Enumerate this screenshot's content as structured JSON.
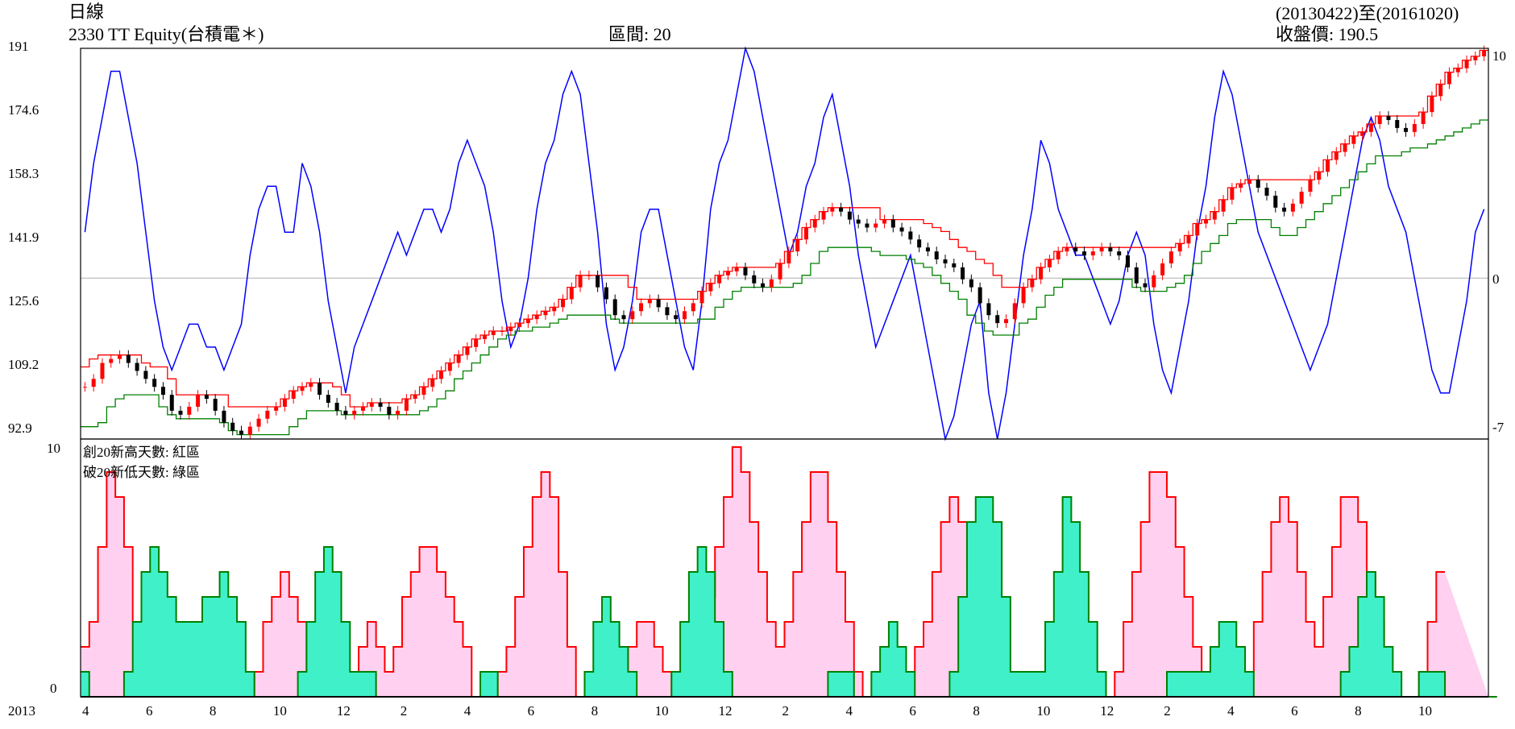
{
  "header": {
    "freq": "日線",
    "security": "2330 TT Equity(台積電＊)",
    "period": "區間:  20",
    "date_range": "(20130422)至(20161020)",
    "close": "收盤價:  190.5"
  },
  "colors": {
    "price_up": "#ff0000",
    "price_down": "#000000",
    "high_band": "#ff0000",
    "low_band": "#008000",
    "oscillator": "#0000ff",
    "high_area_fill": "#ffd0f0",
    "low_area_fill": "#40f0c8",
    "zero_line": "#b0b0b0"
  },
  "chart_data": [
    {
      "type": "line",
      "panel": "upper",
      "title": "2330 TT Equity(台積電＊)",
      "y_ticks_left": [
        "191",
        "174.6",
        "158.3",
        "141.9",
        "125.6",
        "109.2",
        "92.9"
      ],
      "y_ticks_right": [
        "10",
        "0",
        "-7"
      ],
      "ylim_price": [
        92.9,
        191
      ],
      "ylim_oscillator": [
        -7,
        10
      ],
      "grid": false,
      "series": [
        {
          "name": "close",
          "style": "candlestick",
          "values": [
            106,
            108,
            112,
            113,
            114,
            112,
            110,
            108,
            106,
            104,
            100,
            99,
            101,
            104,
            103,
            100,
            97,
            95,
            94,
            96,
            98,
            100,
            101,
            103,
            105,
            106,
            107,
            104,
            102,
            100,
            99,
            100,
            101,
            102,
            101,
            99,
            100,
            103,
            104,
            106,
            108,
            110,
            112,
            114,
            116,
            118,
            119,
            120,
            120,
            121,
            122,
            123,
            124,
            125,
            126,
            128,
            131,
            134,
            134,
            131,
            128,
            124,
            123,
            125,
            127,
            128,
            126,
            124,
            123,
            125,
            127,
            130,
            132,
            134,
            135,
            136,
            134,
            132,
            131,
            133,
            137,
            140,
            143,
            146,
            148,
            150,
            151,
            150,
            148,
            147,
            146,
            147,
            148,
            146,
            145,
            143,
            141,
            140,
            138,
            137,
            136,
            133,
            131,
            127,
            124,
            122,
            123,
            127,
            131,
            133,
            136,
            138,
            140,
            141,
            140,
            139,
            140,
            141,
            140,
            139,
            136,
            132,
            131,
            134,
            137,
            140,
            142,
            144,
            147,
            148,
            150,
            153,
            156,
            157,
            158,
            156,
            154,
            151,
            150,
            152,
            155,
            158,
            160,
            163,
            165,
            167,
            169,
            170,
            172,
            174,
            173,
            171,
            170,
            172,
            175,
            179,
            182,
            185,
            186,
            188,
            189,
            190.5
          ]
        },
        {
          "name": "20-day high",
          "values": [
            111,
            113,
            114,
            114,
            114,
            114,
            114,
            112,
            111,
            111,
            108,
            104,
            104,
            104,
            104,
            104,
            104,
            101,
            101,
            101,
            101,
            101,
            101,
            103,
            105,
            106,
            107,
            107,
            107,
            106,
            104,
            101,
            101,
            102,
            102,
            102,
            102,
            103,
            104,
            106,
            108,
            110,
            112,
            114,
            116,
            118,
            119,
            120,
            120,
            121,
            122,
            123,
            124,
            125,
            126,
            128,
            131,
            134,
            134,
            134,
            134,
            134,
            134,
            131,
            128,
            128,
            128,
            128,
            128,
            128,
            128,
            130,
            132,
            134,
            135,
            136,
            136,
            136,
            136,
            136,
            137,
            140,
            143,
            146,
            148,
            150,
            151,
            151,
            151,
            151,
            151,
            151,
            148,
            148,
            148,
            148,
            148,
            147,
            146,
            145,
            143,
            141,
            140,
            138,
            137,
            134,
            131,
            131,
            131,
            133,
            136,
            138,
            140,
            141,
            141,
            141,
            141,
            141,
            141,
            141,
            141,
            141,
            141,
            141,
            141,
            141,
            142,
            144,
            147,
            148,
            150,
            153,
            156,
            157,
            158,
            158,
            158,
            158,
            158,
            158,
            158,
            158,
            160,
            163,
            165,
            167,
            169,
            170,
            172,
            174,
            174,
            174,
            174,
            174,
            175,
            179,
            182,
            185,
            186,
            188,
            189,
            190.5
          ]
        },
        {
          "name": "20-day low",
          "values": [
            96,
            96,
            97,
            101,
            103,
            104,
            104,
            104,
            104,
            101,
            99,
            98,
            98,
            98,
            98,
            98,
            97,
            95,
            94,
            94,
            94,
            94,
            94,
            94,
            96,
            98,
            100,
            100,
            100,
            100,
            99,
            99,
            99,
            99,
            99,
            99,
            99,
            99,
            99,
            100,
            101,
            103,
            105,
            108,
            110,
            112,
            114,
            116,
            118,
            119,
            120,
            120,
            121,
            121,
            122,
            123,
            124,
            124,
            124,
            124,
            124,
            123,
            122,
            122,
            122,
            122,
            122,
            122,
            122,
            122,
            122,
            123,
            123,
            126,
            128,
            130,
            131,
            131,
            131,
            131,
            131,
            131,
            132,
            134,
            137,
            140,
            141,
            141,
            141,
            141,
            141,
            140,
            139,
            139,
            139,
            138,
            137,
            136,
            134,
            132,
            130,
            128,
            124,
            122,
            120,
            119,
            119,
            119,
            122,
            123,
            126,
            129,
            131,
            133,
            133,
            133,
            133,
            133,
            133,
            133,
            133,
            131,
            130,
            130,
            130,
            131,
            132,
            134,
            137,
            140,
            142,
            144,
            147,
            148,
            148,
            148,
            148,
            146,
            144,
            144,
            146,
            148,
            150,
            152,
            154,
            156,
            158,
            160,
            162,
            164,
            164,
            164,
            165,
            166,
            166,
            167,
            168,
            169,
            170,
            171,
            172,
            173
          ]
        },
        {
          "name": "oscillator",
          "values": [
            2,
            5,
            7,
            9,
            9,
            7,
            5,
            2,
            -1,
            -3,
            -4,
            -3,
            -2,
            -2,
            -3,
            -3,
            -4,
            -3,
            -2,
            1,
            3,
            4,
            4,
            2,
            2,
            5,
            4,
            2,
            -1,
            -3,
            -5,
            -3,
            -2,
            -1,
            0,
            1,
            2,
            1,
            2,
            3,
            3,
            2,
            3,
            5,
            6,
            5,
            4,
            2,
            -1,
            -3,
            -2,
            0,
            3,
            5,
            6,
            8,
            9,
            8,
            5,
            2,
            -2,
            -4,
            -3,
            -1,
            2,
            3,
            3,
            1,
            -1,
            -3,
            -4,
            -1,
            3,
            5,
            6,
            8,
            10,
            9,
            7,
            5,
            3,
            1,
            2,
            4,
            5,
            7,
            8,
            6,
            4,
            1,
            -1,
            -3,
            -2,
            -1,
            0,
            1,
            -1,
            -3,
            -5,
            -7,
            -6,
            -4,
            -2,
            -1,
            -5,
            -7,
            -5,
            -2,
            1,
            3,
            6,
            5,
            3,
            2,
            1,
            1,
            0,
            -1,
            -2,
            -1,
            1,
            2,
            1,
            -2,
            -4,
            -5,
            -3,
            -1,
            2,
            4,
            7,
            9,
            8,
            6,
            4,
            2,
            1,
            0,
            -1,
            -2,
            -3,
            -4,
            -3,
            -2,
            0,
            2,
            4,
            6,
            7,
            6,
            4,
            3,
            2,
            0,
            -2,
            -4,
            -5,
            -5,
            -3,
            -1,
            2,
            3
          ]
        }
      ]
    },
    {
      "type": "area",
      "panel": "lower",
      "x_axis_year": "2013",
      "x_tick_labels": [
        "4",
        "6",
        "8",
        "10",
        "12",
        "2",
        "4",
        "6",
        "8",
        "10",
        "12",
        "2",
        "4",
        "6",
        "8",
        "10",
        "12",
        "2",
        "4",
        "6",
        "8",
        "10"
      ],
      "y_ticks_left": [
        "10",
        "0"
      ],
      "ylim": [
        0,
        10
      ],
      "legend_texts": [
        "創20新高天數: 紅區",
        "破20新低天數: 綠區"
      ],
      "series": [
        {
          "name": "創20新高天數",
          "values": [
            2,
            3,
            6,
            9,
            8,
            6,
            3,
            1,
            0,
            0,
            0,
            0,
            0,
            1,
            3,
            3,
            2,
            1,
            0,
            0,
            1,
            3,
            4,
            5,
            4,
            3,
            1,
            0,
            0,
            0,
            0,
            1,
            2,
            3,
            2,
            1,
            2,
            4,
            5,
            6,
            6,
            5,
            4,
            3,
            2,
            0,
            0,
            0,
            1,
            2,
            4,
            6,
            8,
            9,
            8,
            5,
            2,
            0,
            0,
            0,
            0,
            0,
            1,
            2,
            3,
            3,
            2,
            1,
            0,
            0,
            0,
            1,
            4,
            6,
            8,
            10,
            9,
            7,
            5,
            3,
            2,
            3,
            5,
            7,
            9,
            9,
            7,
            5,
            3,
            1,
            0,
            0,
            0,
            0,
            0,
            1,
            2,
            3,
            5,
            7,
            8,
            7,
            5,
            3,
            2,
            1,
            0,
            0,
            0,
            0,
            1,
            2,
            3,
            2,
            1,
            0,
            0,
            0,
            0,
            1,
            3,
            5,
            7,
            9,
            9,
            8,
            6,
            4,
            2,
            1,
            0,
            0,
            0,
            0,
            1,
            3,
            5,
            7,
            8,
            7,
            5,
            3,
            2,
            4,
            6,
            8,
            8,
            7,
            5,
            3,
            1,
            0,
            0,
            0,
            1,
            3,
            5
          ]
        },
        {
          "name": "破20新低天數",
          "values": [
            1,
            0,
            0,
            0,
            0,
            1,
            3,
            5,
            6,
            5,
            4,
            3,
            3,
            3,
            4,
            4,
            5,
            4,
            3,
            1,
            0,
            0,
            0,
            0,
            0,
            1,
            3,
            5,
            6,
            5,
            3,
            1,
            1,
            1,
            0,
            0,
            0,
            0,
            0,
            0,
            0,
            0,
            0,
            0,
            0,
            0,
            1,
            1,
            0,
            0,
            0,
            0,
            0,
            0,
            0,
            0,
            0,
            0,
            1,
            3,
            4,
            3,
            2,
            1,
            0,
            0,
            0,
            0,
            1,
            3,
            5,
            6,
            5,
            3,
            1,
            0,
            0,
            0,
            0,
            0,
            0,
            0,
            0,
            0,
            0,
            0,
            1,
            1,
            1,
            0,
            0,
            1,
            2,
            3,
            2,
            1,
            0,
            0,
            0,
            0,
            1,
            4,
            7,
            8,
            8,
            7,
            4,
            1,
            1,
            1,
            1,
            3,
            5,
            8,
            7,
            5,
            3,
            1,
            0,
            0,
            0,
            0,
            0,
            0,
            0,
            1,
            1,
            1,
            1,
            1,
            2,
            3,
            3,
            2,
            1,
            0,
            0,
            0,
            0,
            0,
            0,
            0,
            0,
            0,
            0,
            1,
            2,
            4,
            5,
            4,
            2,
            1,
            0,
            0,
            1,
            1,
            1,
            0,
            0,
            0,
            0,
            0,
            0
          ]
        }
      ]
    }
  ]
}
